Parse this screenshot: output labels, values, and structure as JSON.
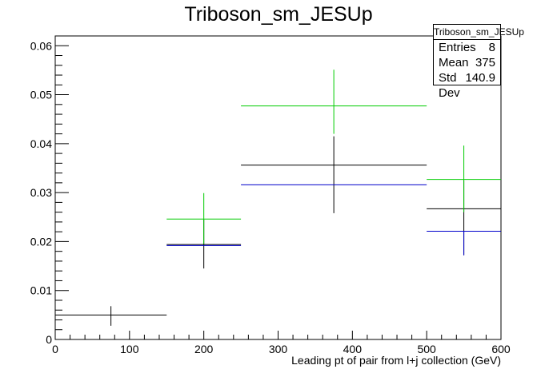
{
  "chart_data": {
    "type": "histogram",
    "title": "Triboson_sm_JESUp",
    "xlabel": "Leading pt of pair from l+j collection (GeV)",
    "ylabel": "",
    "xlim": [
      0,
      600
    ],
    "ylim": [
      0,
      0.062
    ],
    "x_ticks": [
      0,
      100,
      200,
      300,
      400,
      500,
      600
    ],
    "y_ticks": [
      0,
      0.01,
      0.02,
      0.03,
      0.04,
      0.05,
      0.06
    ],
    "x_tick_labels": [
      "0",
      "100",
      "200",
      "300",
      "400",
      "500",
      "600"
    ],
    "y_tick_labels": [
      "0",
      "0.01",
      "0.02",
      "0.03",
      "0.04",
      "0.05",
      "0.06"
    ],
    "grid": false,
    "series": [
      {
        "color": "#000000",
        "bins": [
          {
            "x_low": 0,
            "x_high": 150,
            "x_center": 75,
            "y": 0.005,
            "err_low": 0.0028,
            "err_high": 0.0068
          },
          {
            "x_low": 150,
            "x_high": 250,
            "x_center": 200,
            "y": 0.0194,
            "err_low": 0.0145,
            "err_high": 0.0245
          },
          {
            "x_low": 250,
            "x_high": 500,
            "x_center": 375,
            "y": 0.0356,
            "err_low": 0.0258,
            "err_high": 0.0415
          },
          {
            "x_low": 500,
            "x_high": 600,
            "x_center": 550,
            "y": 0.0267,
            "err_low": 0.0172,
            "err_high": 0.0325
          }
        ]
      },
      {
        "color": "#00cc00",
        "bins": [
          {
            "x_low": 150,
            "x_high": 250,
            "x_center": 200,
            "y": 0.0246,
            "err_low": 0.0195,
            "err_high": 0.0299
          },
          {
            "x_low": 250,
            "x_high": 500,
            "x_center": 375,
            "y": 0.0477,
            "err_low": 0.042,
            "err_high": 0.0551
          },
          {
            "x_low": 500,
            "x_high": 600,
            "x_center": 550,
            "y": 0.0327,
            "err_low": 0.026,
            "err_high": 0.0396
          }
        ]
      },
      {
        "color": "#0000cc",
        "bins": [
          {
            "x_low": 150,
            "x_high": 250,
            "x_center": 200,
            "y": 0.0192,
            "err_low": 0.0192,
            "err_high": 0.0192
          },
          {
            "x_low": 250,
            "x_high": 500,
            "x_center": 375,
            "y": 0.0316,
            "err_low": 0.0316,
            "err_high": 0.0316
          },
          {
            "x_low": 500,
            "x_high": 600,
            "x_center": 550,
            "y": 0.0221,
            "err_low": 0.0172,
            "err_high": 0.0221
          }
        ]
      }
    ]
  },
  "stats_box": {
    "title": "Triboson_sm_JESUp",
    "rows": [
      {
        "label": "Entries",
        "value": "8"
      },
      {
        "label": "Mean",
        "value": "375"
      },
      {
        "label": "Std Dev",
        "value": "140.9"
      }
    ]
  }
}
